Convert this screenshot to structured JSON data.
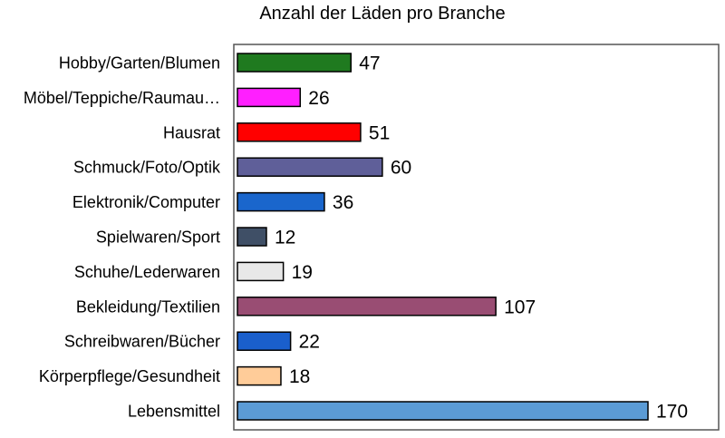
{
  "chart_data": {
    "type": "bar",
    "orientation": "horizontal",
    "title": "Anzahl der Läden pro Branche",
    "xlabel": "",
    "ylabel": "",
    "xlim": [
      0,
      200
    ],
    "grid": false,
    "legend": "none",
    "categories": [
      "Hobby/Garten/Blumen",
      "Möbel/Teppiche/Raumau…",
      "Hausrat",
      "Schmuck/Foto/Optik",
      "Elektronik/Computer",
      "Spielwaren/Sport",
      "Schuhe/Lederwaren",
      "Bekleidung/Textilien",
      "Schreibwaren/Bücher",
      "Körperpflege/Gesundheit",
      "Lebensmittel"
    ],
    "values": [
      47,
      26,
      51,
      60,
      36,
      12,
      19,
      107,
      22,
      18,
      170
    ],
    "colors": [
      "#1f7a1f",
      "#ff1fff",
      "#ff0000",
      "#5f5f99",
      "#1a66cc",
      "#3f4f66",
      "#e8e8e8",
      "#994d73",
      "#1a5fcc",
      "#ffcc99",
      "#5b9bd5"
    ]
  }
}
